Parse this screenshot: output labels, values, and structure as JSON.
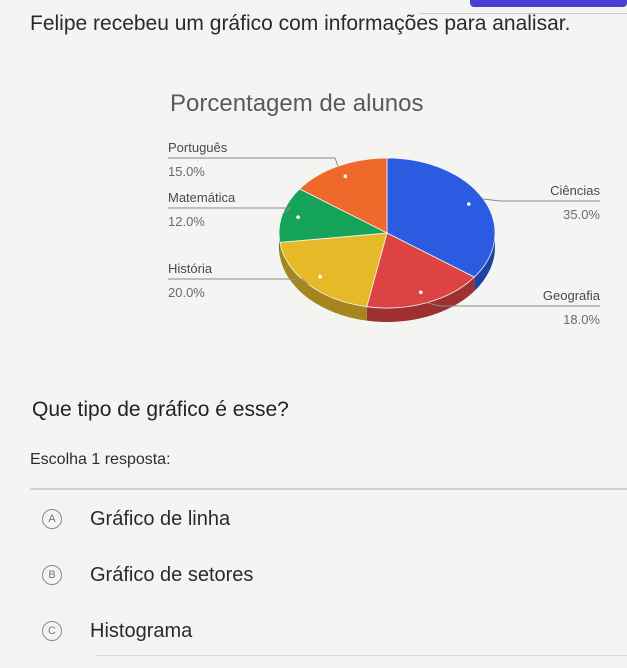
{
  "intro_text": "Felipe recebeu um gráfico com informações para analisar.",
  "question": "Que tipo de gráfico é esse?",
  "instruction": "Escolha 1 resposta:",
  "options": [
    {
      "letter": "A",
      "text": "Gráfico de linha"
    },
    {
      "letter": "B",
      "text": "Gráfico de setores"
    },
    {
      "letter": "C",
      "text": "Histograma"
    }
  ],
  "chart_data": {
    "type": "pie",
    "title": "Porcentagem de alunos",
    "slices": [
      {
        "label": "Ciências",
        "value_text": "35.0%",
        "value": 35.0,
        "color": "#2b5be0"
      },
      {
        "label": "Geografia",
        "value_text": "18.0%",
        "value": 18.0,
        "color": "#dd4343"
      },
      {
        "label": "História",
        "value_text": "20.0%",
        "value": 20.0,
        "color": "#e6b928"
      },
      {
        "label": "Matemática",
        "value_text": "12.0%",
        "value": 12.0,
        "color": "#15a35a"
      },
      {
        "label": "Português",
        "value_text": "15.0%",
        "value": 15.0,
        "color": "#ef6a2a"
      }
    ]
  }
}
